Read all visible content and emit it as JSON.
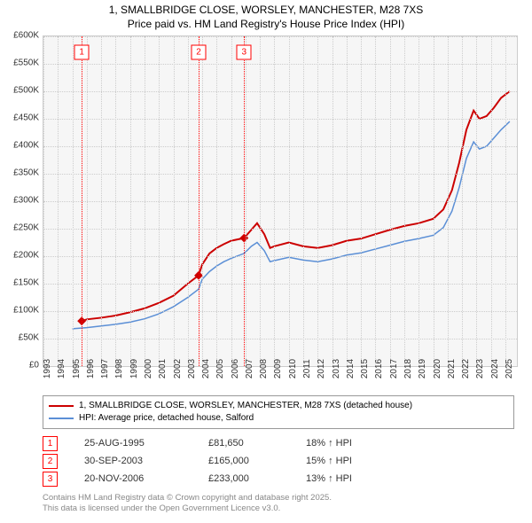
{
  "title_line1": "1, SMALLBRIDGE CLOSE, WORSLEY, MANCHESTER, M28 7XS",
  "title_line2": "Price paid vs. HM Land Registry's House Price Index (HPI)",
  "chart": {
    "type": "line",
    "background_color": "#f6f6f6",
    "grid_color": "#cccccc",
    "x_min": 1993,
    "x_max": 2025.8,
    "y_min": 0,
    "y_max": 600,
    "y_ticks": [
      0,
      50,
      100,
      150,
      200,
      250,
      300,
      350,
      400,
      450,
      500,
      550,
      600
    ],
    "y_tick_labels": [
      "£0",
      "£50K",
      "£100K",
      "£150K",
      "£200K",
      "£250K",
      "£300K",
      "£350K",
      "£400K",
      "£450K",
      "£500K",
      "£550K",
      "£600K"
    ],
    "x_ticks": [
      1993,
      1994,
      1995,
      1996,
      1997,
      1998,
      1999,
      2000,
      2001,
      2002,
      2003,
      2004,
      2005,
      2006,
      2007,
      2008,
      2009,
      2010,
      2011,
      2012,
      2013,
      2014,
      2015,
      2016,
      2017,
      2018,
      2019,
      2020,
      2021,
      2022,
      2023,
      2024,
      2025
    ],
    "series": [
      {
        "name": "price_paid",
        "label": "1, SMALLBRIDGE CLOSE, WORSLEY, MANCHESTER, M28 7XS (detached house)",
        "color": "#cc0000",
        "width": 2,
        "points": [
          [
            1995.65,
            82
          ],
          [
            1996,
            85
          ],
          [
            1997,
            88
          ],
          [
            1998,
            92
          ],
          [
            1999,
            98
          ],
          [
            2000,
            105
          ],
          [
            2001,
            115
          ],
          [
            2002,
            128
          ],
          [
            2003,
            150
          ],
          [
            2003.75,
            165
          ],
          [
            2004,
            185
          ],
          [
            2004.5,
            205
          ],
          [
            2005,
            215
          ],
          [
            2005.5,
            222
          ],
          [
            2006,
            228
          ],
          [
            2006.9,
            233
          ],
          [
            2007.4,
            248
          ],
          [
            2007.8,
            260
          ],
          [
            2008.3,
            240
          ],
          [
            2008.7,
            215
          ],
          [
            2009,
            218
          ],
          [
            2010,
            225
          ],
          [
            2011,
            218
          ],
          [
            2012,
            215
          ],
          [
            2013,
            220
          ],
          [
            2014,
            228
          ],
          [
            2015,
            232
          ],
          [
            2016,
            240
          ],
          [
            2017,
            248
          ],
          [
            2018,
            255
          ],
          [
            2019,
            260
          ],
          [
            2020,
            268
          ],
          [
            2020.7,
            285
          ],
          [
            2021.3,
            320
          ],
          [
            2021.8,
            370
          ],
          [
            2022.3,
            430
          ],
          [
            2022.8,
            465
          ],
          [
            2023.2,
            450
          ],
          [
            2023.7,
            455
          ],
          [
            2024.2,
            470
          ],
          [
            2024.7,
            488
          ],
          [
            2025.3,
            500
          ]
        ],
        "transaction_marker_color": "#cc0000"
      },
      {
        "name": "hpi",
        "label": "HPI: Average price, detached house, Salford",
        "color": "#5b8fd6",
        "width": 1.5,
        "points": [
          [
            1995,
            68
          ],
          [
            1996,
            70
          ],
          [
            1997,
            73
          ],
          [
            1998,
            76
          ],
          [
            1999,
            80
          ],
          [
            2000,
            86
          ],
          [
            2001,
            95
          ],
          [
            2002,
            108
          ],
          [
            2003,
            125
          ],
          [
            2003.75,
            140
          ],
          [
            2004,
            158
          ],
          [
            2004.5,
            172
          ],
          [
            2005,
            182
          ],
          [
            2005.5,
            190
          ],
          [
            2006,
            196
          ],
          [
            2006.9,
            205
          ],
          [
            2007.4,
            218
          ],
          [
            2007.8,
            225
          ],
          [
            2008.3,
            210
          ],
          [
            2008.7,
            190
          ],
          [
            2009,
            192
          ],
          [
            2010,
            198
          ],
          [
            2011,
            193
          ],
          [
            2012,
            190
          ],
          [
            2013,
            195
          ],
          [
            2014,
            202
          ],
          [
            2015,
            206
          ],
          [
            2016,
            213
          ],
          [
            2017,
            220
          ],
          [
            2018,
            227
          ],
          [
            2019,
            232
          ],
          [
            2020,
            238
          ],
          [
            2020.7,
            252
          ],
          [
            2021.3,
            282
          ],
          [
            2021.8,
            325
          ],
          [
            2022.3,
            378
          ],
          [
            2022.8,
            408
          ],
          [
            2023.2,
            395
          ],
          [
            2023.7,
            400
          ],
          [
            2024.2,
            415
          ],
          [
            2024.7,
            430
          ],
          [
            2025.3,
            445
          ]
        ]
      }
    ],
    "markers": [
      {
        "num": "1",
        "x": 1995.65
      },
      {
        "num": "2",
        "x": 2003.75
      },
      {
        "num": "3",
        "x": 2006.9
      }
    ]
  },
  "legend": {
    "items": [
      {
        "color": "#cc0000",
        "label": "1, SMALLBRIDGE CLOSE, WORSLEY, MANCHESTER, M28 7XS (detached house)"
      },
      {
        "color": "#5b8fd6",
        "label": "HPI: Average price, detached house, Salford"
      }
    ]
  },
  "transactions": [
    {
      "num": "1",
      "date": "25-AUG-1995",
      "price": "£81,650",
      "hpi": "18% ↑ HPI"
    },
    {
      "num": "2",
      "date": "30-SEP-2003",
      "price": "£165,000",
      "hpi": "15% ↑ HPI"
    },
    {
      "num": "3",
      "date": "20-NOV-2006",
      "price": "£233,000",
      "hpi": "13% ↑ HPI"
    }
  ],
  "footer_line1": "Contains HM Land Registry data © Crown copyright and database right 2025.",
  "footer_line2": "This data is licensed under the Open Government Licence v3.0."
}
